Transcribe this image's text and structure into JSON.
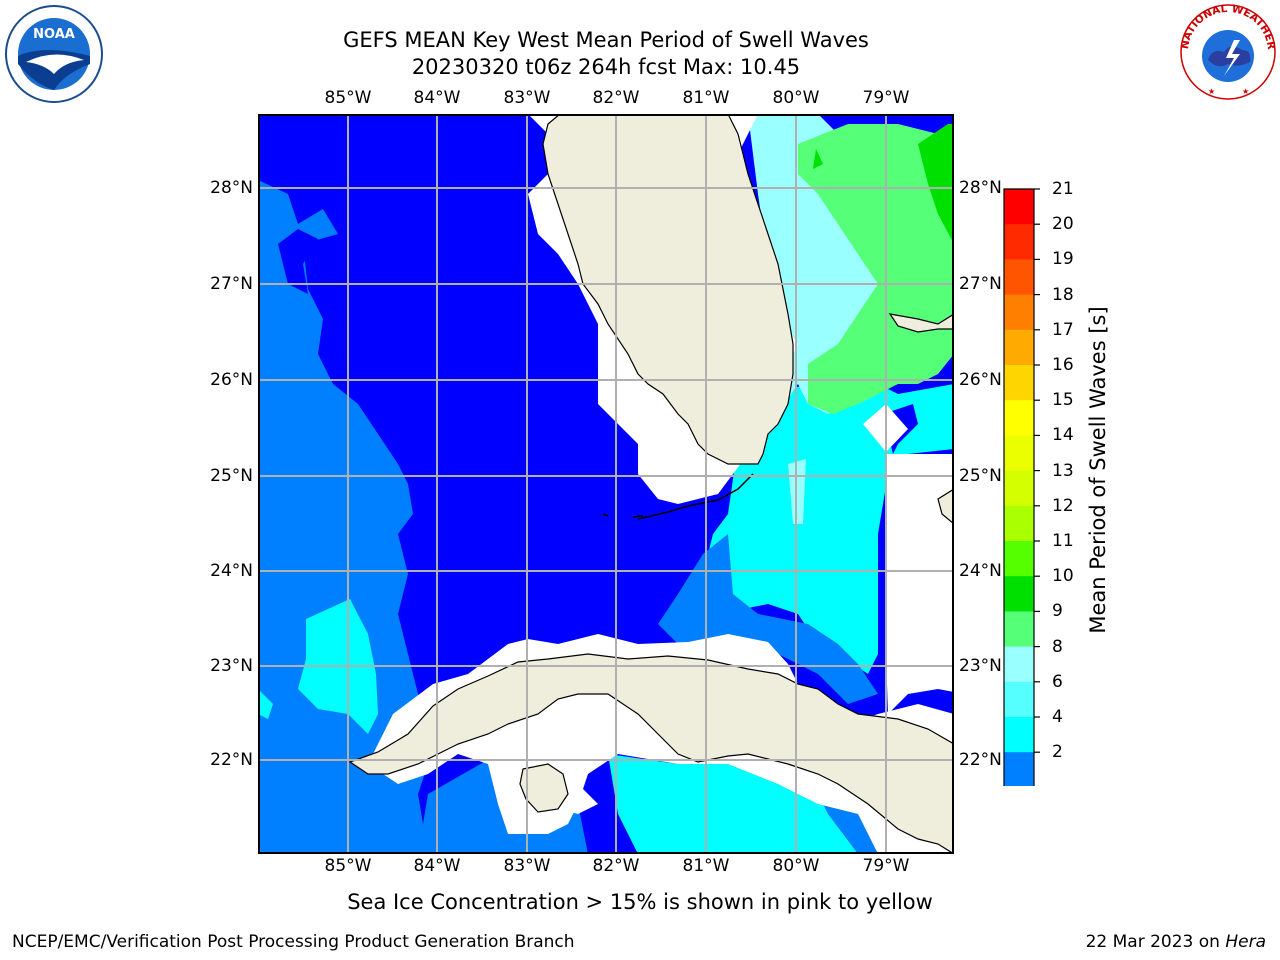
{
  "header": {
    "title_line1": "GEFS MEAN Key West Mean Period of Swell Waves",
    "title_line2": "20230320 t06z 264h fcst   Max: 10.45"
  },
  "logos": {
    "left": {
      "icon": "noaa-logo-icon",
      "text": "NOAA"
    },
    "right": {
      "icon": "nws-logo-icon",
      "ring_text": "NATIONAL WEATHER SERVICE"
    }
  },
  "map": {
    "lon_labels": [
      "85°W",
      "84°W",
      "83°W",
      "82°W",
      "81°W",
      "80°W",
      "79°W"
    ],
    "lat_labels": [
      "28°N",
      "27°N",
      "26°N",
      "25°N",
      "24°N",
      "23°N",
      "22°N"
    ],
    "colors": {
      "ocean_deep": "#0000ff",
      "ocean_mid": "#0080ff",
      "ocean_cyan": "#00ffff",
      "ocean_light": "#99ffff",
      "ocean_green": "#55ff77",
      "ocean_bright_green": "#00e000",
      "land": "#efeedd",
      "nodata": "#ffffff",
      "grid": "#b0b0b0"
    }
  },
  "colorbar": {
    "label": "Mean Period of Swell Waves [s]",
    "ticks": [
      "21",
      "20",
      "19",
      "18",
      "17",
      "16",
      "15",
      "14",
      "13",
      "12",
      "11",
      "10",
      "9",
      "8",
      "6",
      "4",
      "2"
    ],
    "colors_top_to_bottom": [
      "#ff0000",
      "#ff2a00",
      "#ff5500",
      "#ff8000",
      "#ffaa00",
      "#ffd500",
      "#ffff00",
      "#eaff00",
      "#d4ff00",
      "#aaff00",
      "#55ff00",
      "#00e000",
      "#55ff77",
      "#99ffff",
      "#55ffff",
      "#00ffff",
      "#0080ff"
    ],
    "extend_color": "#0000ff"
  },
  "footnote": "Sea Ice Concentration > 15% is shown in pink to yellow",
  "footer": {
    "left": "NCEP/EMC/Verification Post Processing Product Generation Branch",
    "date": "22 Mar 2023 on ",
    "machine": "Hera"
  }
}
